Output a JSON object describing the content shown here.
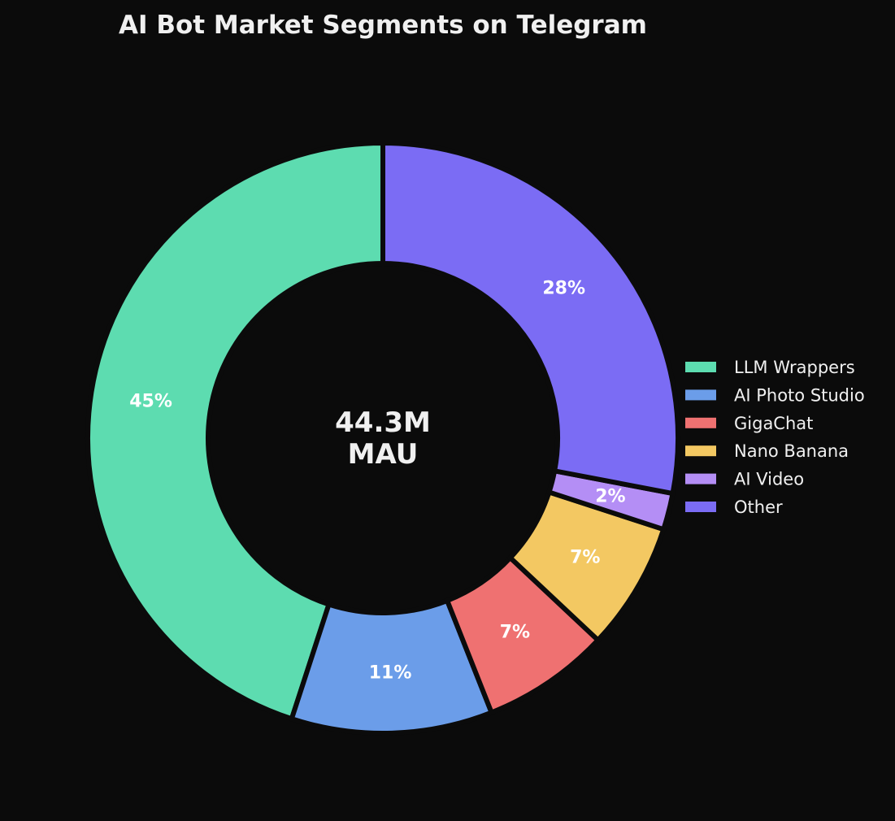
{
  "chart_data": {
    "type": "pie",
    "title": "AI Bot Market Segments on Telegram",
    "center_label": [
      "44.3M",
      "MAU"
    ],
    "categories": [
      "LLM Wrappers",
      "AI Photo Studio",
      "GigaChat",
      "Nano Banana",
      "AI Video",
      "Other"
    ],
    "values": [
      45,
      11,
      7,
      7,
      2,
      28
    ],
    "labels": [
      "45%",
      "11%",
      "7%",
      "7%",
      "2%",
      "28%"
    ],
    "colors": [
      "#5ddcb0",
      "#6b9de9",
      "#ef7171",
      "#f3c862",
      "#b48ef5",
      "#7b6cf4"
    ],
    "legend_position": "right",
    "start": "top",
    "direction": "counterclockwise"
  }
}
